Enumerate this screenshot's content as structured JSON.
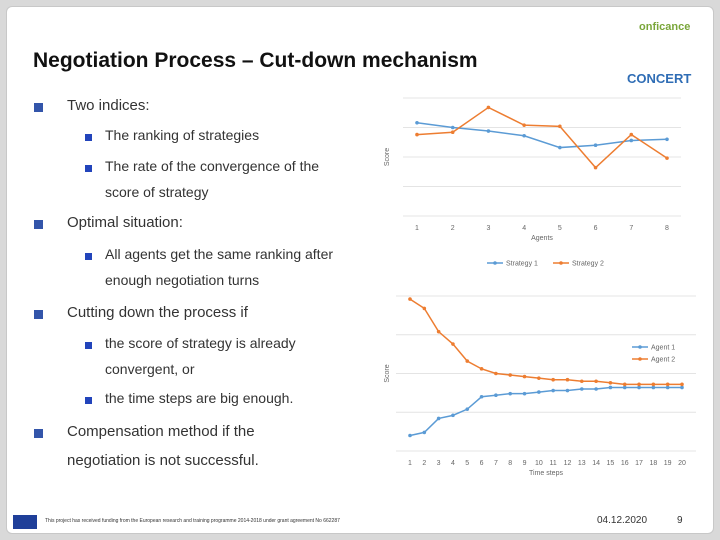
{
  "title": "Negotiation Process – Cut-down mechanism",
  "logos": [
    "onficance",
    "CONCERT"
  ],
  "bullets": [
    {
      "text": "Two indices:",
      "sub": [
        "The ranking of strategies",
        "The rate of the convergence of the score of strategy"
      ]
    },
    {
      "text": "Optimal situation:",
      "sub": [
        "All agents get the same ranking after enough negotiation turns"
      ]
    },
    {
      "text": "Cutting down the process if",
      "sub": [
        "the score of strategy is already convergent, or",
        "the time steps are big enough."
      ]
    },
    {
      "text": "Compensation method if the negotiation is not successful.",
      "sub": []
    }
  ],
  "footer": {
    "funding": "This project has received funding from the European research and training programme 2014-2018 under grant agreement No 662287",
    "date": "04.12.2020",
    "page": "9"
  },
  "chart_data": [
    {
      "type": "line",
      "x_label": "Agents",
      "y_label": "Score",
      "categories": [
        "1",
        "2",
        "3",
        "4",
        "5",
        "6",
        "7",
        "8"
      ],
      "ylim": [
        0,
        100
      ],
      "legend": "bottom",
      "series": [
        {
          "name": "Strategy 1",
          "color": "#5b9bd5",
          "values": [
            79,
            75,
            72,
            68,
            58,
            60,
            64,
            65
          ]
        },
        {
          "name": "Strategy 2",
          "color": "#ed7d31",
          "values": [
            69,
            71,
            92,
            77,
            76,
            41,
            69,
            49
          ]
        }
      ]
    },
    {
      "type": "line",
      "x_label": "Time steps",
      "y_label": "Score",
      "categories": [
        "1",
        "2",
        "3",
        "4",
        "5",
        "6",
        "7",
        "8",
        "9",
        "10",
        "11",
        "12",
        "13",
        "14",
        "15",
        "16",
        "17",
        "18",
        "19",
        "20"
      ],
      "ylim": [
        0,
        100
      ],
      "legend": "right",
      "series": [
        {
          "name": "Agent 1",
          "color": "#5b9bd5",
          "values": [
            10,
            12,
            21,
            23,
            27,
            35,
            36,
            37,
            37,
            38,
            39,
            39,
            40,
            40,
            41,
            41,
            41,
            41,
            41,
            41
          ]
        },
        {
          "name": "Agent 2",
          "color": "#ed7d31",
          "values": [
            98,
            92,
            77,
            69,
            58,
            53,
            50,
            49,
            48,
            47,
            46,
            46,
            45,
            45,
            44,
            43,
            43,
            43,
            43,
            43
          ]
        }
      ]
    }
  ]
}
